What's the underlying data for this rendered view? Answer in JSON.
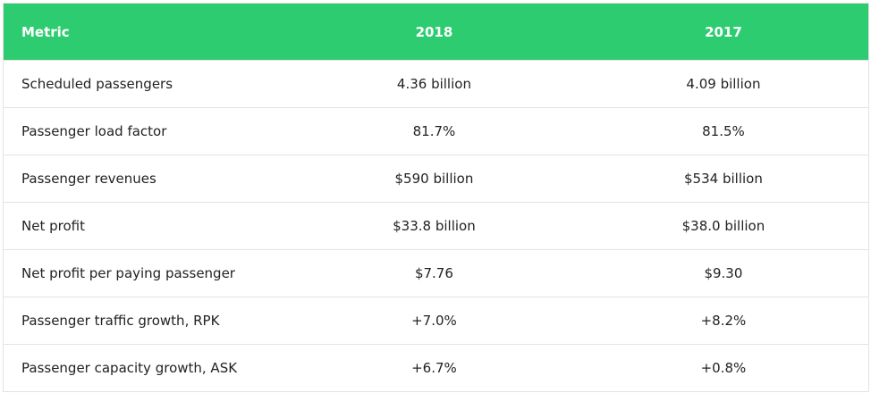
{
  "table": {
    "header": [
      "Metric",
      "2018",
      "2017"
    ],
    "rows": [
      [
        "Scheduled passengers",
        "4.36 billion",
        "4.09 billion"
      ],
      [
        "Passenger load factor",
        "81.7%",
        "81.5%"
      ],
      [
        "Passenger revenues",
        "$590 billion",
        "$534 billion"
      ],
      [
        "Net profit",
        "$33.8 billion",
        "$38.0 billion"
      ],
      [
        "Net profit per paying passenger",
        "$7.76",
        "$9.30"
      ],
      [
        "Passenger traffic growth, RPK",
        "+7.0%",
        "+8.2%"
      ],
      [
        "Passenger capacity growth, ASK",
        "+6.7%",
        "+0.8%"
      ]
    ]
  }
}
